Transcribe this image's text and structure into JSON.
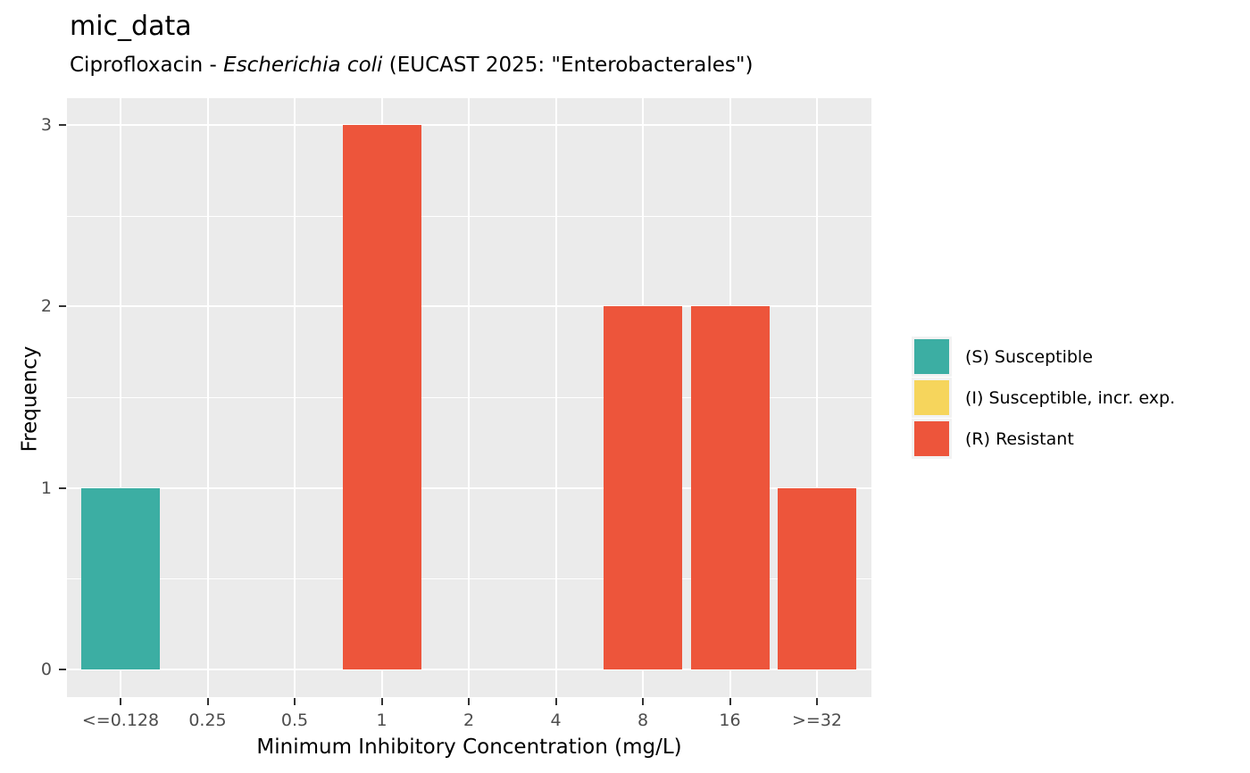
{
  "chart_data": {
    "type": "bar",
    "title": "mic_data",
    "subtitle": {
      "segments": [
        {
          "text": "Ciprofloxacin - ",
          "italic": false
        },
        {
          "text": "Escherichia coli",
          "italic": true
        },
        {
          "text": " (EUCAST 2025: \"Enterobacterales\")",
          "italic": false
        }
      ]
    },
    "xlabel": "Minimum Inhibitory Concentration (mg/L)",
    "ylabel": "Frequency",
    "categories": [
      "<=0.128",
      "0.25",
      "0.5",
      "1",
      "2",
      "4",
      "8",
      "16",
      ">=32"
    ],
    "values": [
      1,
      0,
      0,
      3,
      0,
      0,
      2,
      2,
      1
    ],
    "classes": [
      "S",
      null,
      null,
      "R",
      null,
      null,
      "R",
      "R",
      "R"
    ],
    "ylim": [
      0,
      3
    ],
    "yticks": [
      0,
      1,
      2,
      3
    ],
    "yticks_minor": [
      0.5,
      1.5,
      2.5
    ],
    "grid": "on",
    "colors": {
      "S": "#3CAEA3",
      "I": "#F6D55C",
      "R": "#ED553B",
      "panel_bg": "#EBEBEB",
      "grid": "#FFFFFF",
      "tick_mark": "#333333",
      "tick_label": "#4D4D4D",
      "legend_key_bg": "#F2F2F2"
    },
    "legend": {
      "position": "right",
      "entries": [
        {
          "code": "S",
          "label": "(S) Susceptible",
          "color": "#3CAEA3"
        },
        {
          "code": "I",
          "label": "(I) Susceptible, incr. exp.",
          "color": "#F6D55C"
        },
        {
          "code": "R",
          "label": "(R) Resistant",
          "color": "#ED553B"
        }
      ]
    }
  }
}
